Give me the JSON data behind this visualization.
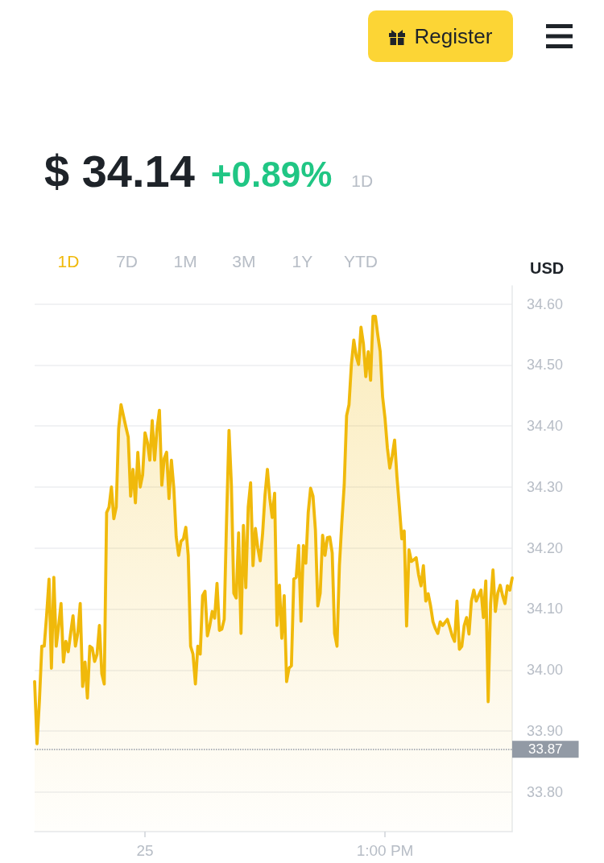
{
  "chart_data": {
    "type": "area",
    "title": "$ 34.14",
    "subtitle": "+0.89%",
    "ylabel": "USD",
    "annotations": [
      "1D",
      "1D",
      "7D",
      "1M",
      "3M",
      "1Y",
      "YTD",
      "Register"
    ],
    "categories": [
      null,
      null,
      null,
      null,
      null,
      null,
      null,
      null,
      null,
      null,
      null,
      null,
      null,
      null,
      null,
      null,
      null,
      null,
      null,
      null,
      null,
      null,
      null,
      null,
      null,
      null,
      null,
      null,
      null,
      null,
      null,
      null,
      null,
      null,
      null,
      null,
      null,
      null,
      null,
      null,
      null,
      null,
      null,
      null,
      null,
      null,
      "25",
      null,
      null,
      null,
      null,
      null,
      null,
      null,
      null,
      null,
      null,
      null,
      null,
      null,
      null,
      null,
      null,
      null,
      null,
      null,
      null,
      null,
      null,
      null,
      null,
      null,
      null,
      null,
      null,
      null,
      null,
      null,
      null,
      null,
      null,
      null,
      null,
      null,
      null,
      null,
      null,
      null,
      null,
      null,
      null,
      null,
      null,
      null,
      null,
      null,
      null,
      null,
      null,
      null,
      null,
      null,
      null,
      null,
      null,
      null,
      null,
      null,
      null,
      null,
      null,
      null,
      null,
      null,
      null,
      null,
      null,
      null,
      null,
      null,
      null,
      null,
      null,
      null,
      null,
      null,
      null,
      null,
      null,
      null,
      null,
      null,
      null,
      null,
      null,
      null,
      null,
      null,
      null,
      null,
      null,
      null,
      null,
      null,
      null,
      null,
      "1:00 PM",
      null,
      null,
      null,
      null,
      null,
      null,
      null,
      null,
      null,
      null,
      null,
      null,
      null,
      null,
      null,
      null,
      null,
      null,
      null,
      null,
      null,
      null,
      null,
      null,
      null,
      null,
      null,
      null,
      null,
      null,
      null,
      null,
      null,
      null,
      null,
      null,
      null,
      null,
      null,
      null,
      null,
      null,
      null,
      null,
      null,
      null,
      null,
      null,
      null,
      null,
      null,
      null,
      null
    ],
    "series": [
      {
        "color": "#f0b90b",
        "values": [
          33.981,
          33.879,
          33.95,
          34.039,
          34.039,
          34.09,
          34.149,
          34.003,
          34.152,
          34.039,
          34.072,
          34.109,
          34.013,
          34.047,
          34.03,
          34.06,
          34.089,
          34.039,
          34.061,
          34.109,
          33.973,
          34.013,
          33.954,
          34.039,
          34.036,
          34.014,
          34.026,
          34.073,
          33.994,
          33.977,
          34.258,
          34.267,
          34.3,
          34.248,
          34.267,
          34.395,
          34.435,
          34.417,
          34.399,
          34.382,
          34.285,
          34.329,
          34.274,
          34.357,
          34.3,
          34.32,
          34.389,
          34.373,
          34.344,
          34.409,
          34.344,
          34.395,
          34.426,
          34.303,
          34.347,
          34.357,
          34.281,
          34.344,
          34.298,
          34.218,
          34.188,
          34.211,
          34.215,
          34.234,
          34.188,
          34.039,
          34.026,
          33.977,
          34.039,
          34.026,
          34.122,
          34.129,
          34.056,
          34.073,
          34.096,
          34.085,
          34.142,
          34.065,
          34.067,
          34.083,
          34.249,
          34.393,
          34.303,
          34.126,
          34.118,
          34.225,
          34.06,
          34.237,
          34.135,
          34.267,
          34.307,
          34.171,
          34.232,
          34.2,
          34.179,
          34.224,
          34.287,
          34.329,
          34.281,
          34.25,
          34.29,
          34.073,
          34.139,
          34.052,
          34.122,
          33.981,
          34.003,
          34.007,
          34.149,
          34.152,
          34.204,
          34.08,
          34.204,
          34.175,
          34.258,
          34.298,
          34.285,
          34.23,
          34.105,
          34.126,
          34.221,
          34.188,
          34.217,
          34.218,
          34.192,
          34.06,
          34.039,
          34.171,
          34.241,
          34.303,
          34.417,
          34.435,
          34.501,
          34.541,
          34.515,
          34.501,
          34.562,
          34.535,
          34.481,
          34.522,
          34.475,
          34.58,
          34.58,
          34.549,
          34.522,
          34.448,
          34.413,
          34.364,
          34.331,
          34.351,
          34.377,
          34.316,
          34.267,
          34.215,
          34.228,
          34.072,
          34.197,
          34.178,
          34.181,
          34.184,
          34.156,
          34.138,
          34.171,
          34.113,
          34.125,
          34.105,
          34.079,
          34.068,
          34.06,
          34.079,
          34.073,
          34.078,
          34.083,
          34.07,
          34.056,
          34.047,
          34.113,
          34.034,
          34.039,
          34.073,
          34.086,
          34.059,
          34.113,
          34.131,
          34.113,
          34.122,
          34.131,
          34.086,
          34.146,
          33.948,
          34.109,
          34.164,
          34.096,
          34.126,
          34.139,
          34.122,
          34.109,
          34.138,
          34.131,
          34.151
        ]
      }
    ],
    "ylim": [
      33.735,
      34.63
    ],
    "yticks": [
      {
        "value": 33.8,
        "label": "33.80"
      },
      {
        "value": 33.9,
        "label": "33.90"
      },
      {
        "value": 34.0,
        "label": "34.00"
      },
      {
        "value": 34.1,
        "label": "34.10"
      },
      {
        "value": 34.2,
        "label": "34.20"
      },
      {
        "value": 34.3,
        "label": "34.30"
      },
      {
        "value": 34.4,
        "label": "34.40"
      },
      {
        "value": 34.5,
        "label": "34.50"
      },
      {
        "value": 34.6,
        "label": "34.60"
      }
    ],
    "ref_lines": [
      {
        "axis": "y",
        "value": 33.87,
        "label": "33.87",
        "line_style": "dotted",
        "color": "#929aa5"
      }
    ],
    "grid": "y",
    "marker": "none",
    "line_style": "solid"
  }
}
